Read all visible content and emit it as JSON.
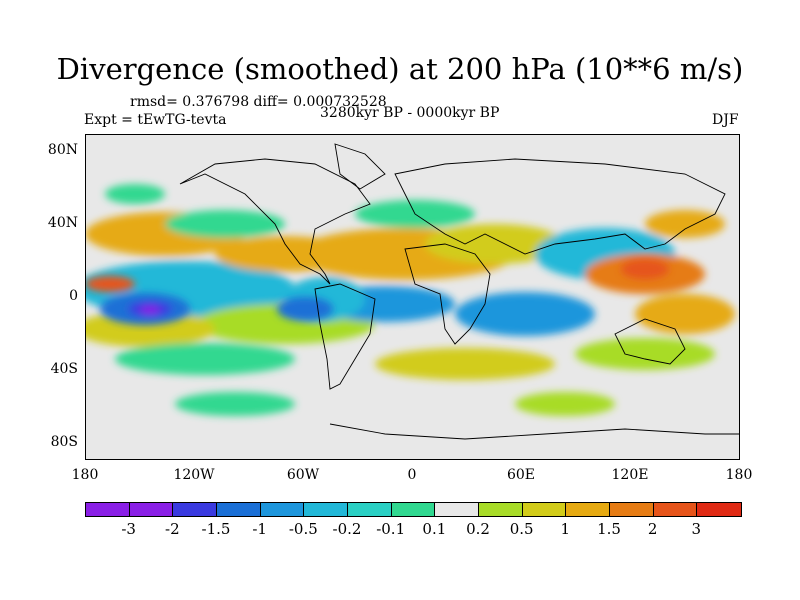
{
  "title": "Divergence (smoothed) at 200 hPa (10**6 m/s)",
  "stats": "rmsd= 0.376798 diff= 0.000732528",
  "experiment": "Expt = tEwTG-tevta",
  "period": "3280kyr BP - 0000kyr BP",
  "season": "DJF",
  "y_ticks": [
    "80N",
    "40N",
    "0",
    "40S",
    "80S"
  ],
  "x_ticks": [
    "180",
    "120W",
    "60W",
    "0",
    "60E",
    "120E",
    "180"
  ],
  "colorbar": {
    "labels": [
      "-3",
      "-2",
      "-1.5",
      "-1",
      "-0.5",
      "-0.2",
      "-0.1",
      "0.1",
      "0.2",
      "0.5",
      "1",
      "1.5",
      "2",
      "3"
    ],
    "colors": [
      "#8a1fe6",
      "#3a3ae0",
      "#1a6fd6",
      "#1e96dc",
      "#22b8d8",
      "#2ad0c4",
      "#30d890",
      "#e8e8e8",
      "#a8dc28",
      "#d2cc1a",
      "#e6aa12",
      "#e67c14",
      "#e6541a",
      "#e02a14"
    ]
  },
  "blobs": [
    {
      "region": "central-pacific-min",
      "lon": -145,
      "lat": -8,
      "lon_half_width": 42,
      "lat_half_width": 14,
      "level": -3
    },
    {
      "region": "central-pacific-core",
      "lon": -145,
      "lat": -8,
      "lon_half_width": 16,
      "lat_half_width": 5,
      "level": -2
    },
    {
      "region": "south-america-low",
      "lon": -55,
      "lat": -5,
      "lon_half_width": 25,
      "lat_half_width": 10,
      "level": -1
    },
    {
      "region": "north-pacific-high",
      "lon": -165,
      "lat": 22,
      "lon_half_width": 20,
      "lat_half_width": 10,
      "level": 1
    },
    {
      "region": "north-atlantic-high",
      "lon": 5,
      "lat": 20,
      "lon_half_width": 30,
      "lat_half_width": 10,
      "level": 1
    },
    {
      "region": "indian-ocean-low",
      "lon": 80,
      "lat": -5,
      "lon_half_width": 25,
      "lat_half_width": 8,
      "level": -0.5
    },
    {
      "region": "maritime-high",
      "lon": 120,
      "lat": 15,
      "lon_half_width": 25,
      "lat_half_width": 10,
      "level": 1.5
    },
    {
      "region": "australia-high",
      "lon": 135,
      "lat": -15,
      "lon_half_width": 20,
      "lat_half_width": 10,
      "level": 1
    }
  ]
}
